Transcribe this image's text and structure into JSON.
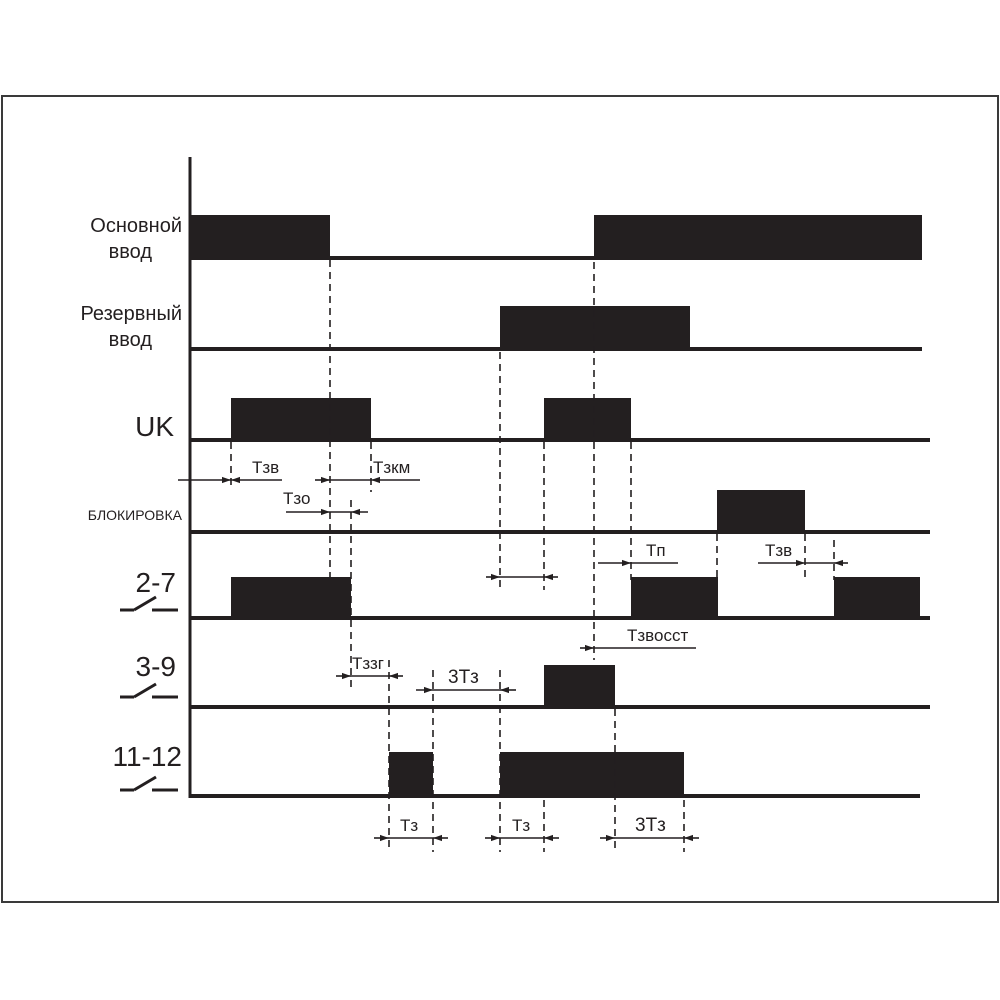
{
  "colors": {
    "ink": "#231f20",
    "frame": "#3a3a3a",
    "background": "#ffffff"
  },
  "rows": [
    {
      "id": "main_input",
      "label_lines": [
        "Основной",
        "ввод"
      ]
    },
    {
      "id": "reserve_input",
      "label_lines": [
        "Резервный",
        "ввод"
      ]
    },
    {
      "id": "uk",
      "label_lines": [
        "UK"
      ]
    },
    {
      "id": "blocking",
      "label_lines": [
        "БЛОКИРОВКА"
      ]
    },
    {
      "id": "contact_2_7",
      "label_lines": [
        "2-7"
      ],
      "contact_icon": "contact-switch-icon"
    },
    {
      "id": "contact_3_9",
      "label_lines": [
        "3-9"
      ],
      "contact_icon": "contact-switch-icon"
    },
    {
      "id": "contact_11_12",
      "label_lines": [
        "11-12"
      ],
      "contact_icon": "contact-switch-icon"
    }
  ],
  "annotations": {
    "t_zv_1": "Tзв",
    "t_zkm": "Tзкм",
    "t_zo": "Tзо",
    "t_p": "Tп",
    "t_zv_2": "Tзв",
    "t_zvosst": "Tзвосст",
    "t_zzg": "Tззг",
    "three_tz_1": "3Tз",
    "tz_1": "Tз",
    "tz_2": "Tз",
    "three_tz_2": "3Tз"
  }
}
